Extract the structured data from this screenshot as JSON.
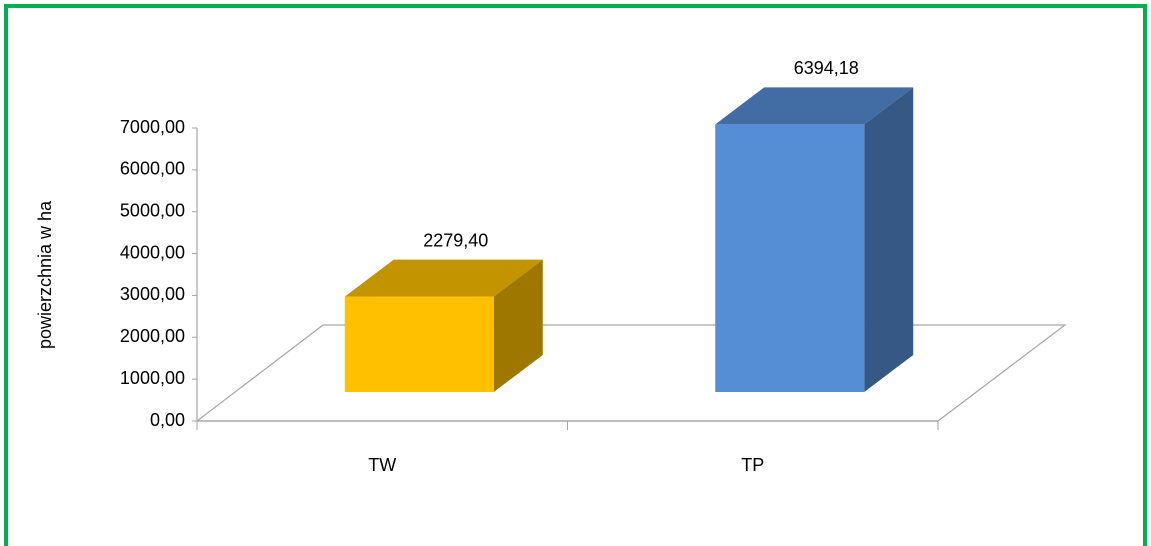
{
  "chart_data": {
    "type": "bar3d",
    "y_axis_label": "powierzchnia w ha",
    "categories": [
      "TW",
      "TP"
    ],
    "values": [
      2279.4,
      6394.18
    ],
    "value_labels": [
      "2279,40",
      "6394,18"
    ],
    "colors": [
      "#ffc000",
      "#558ed5"
    ],
    "ylim": [
      0,
      7000
    ],
    "yticks": [
      {
        "value": 0,
        "label": "0,00"
      },
      {
        "value": 1000,
        "label": "1000,00"
      },
      {
        "value": 2000,
        "label": "2000,00"
      },
      {
        "value": 3000,
        "label": "3000,00"
      },
      {
        "value": 4000,
        "label": "4000,00"
      },
      {
        "value": 5000,
        "label": "5000,00"
      },
      {
        "value": 6000,
        "label": "6000,00"
      },
      {
        "value": 7000,
        "label": "7000,00"
      }
    ],
    "grid": false
  }
}
